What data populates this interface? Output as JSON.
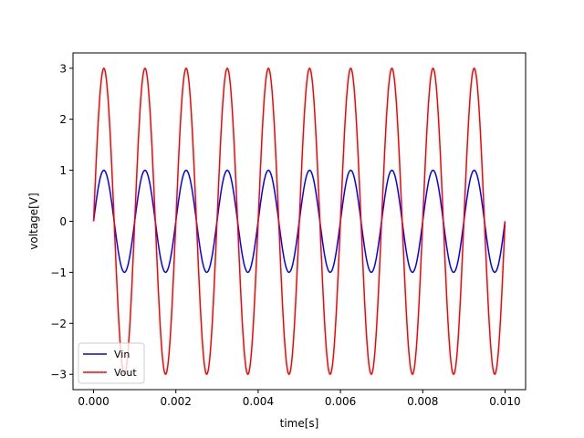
{
  "chart_data": {
    "type": "line",
    "title": "",
    "xlabel": "time[s]",
    "ylabel": "voltage[V]",
    "xlim": [
      -0.0005,
      0.0105
    ],
    "ylim": [
      -3.3,
      3.3
    ],
    "xticks": [
      0.0,
      0.002,
      0.004,
      0.006,
      0.008,
      0.01
    ],
    "xtick_labels": [
      "0.000",
      "0.002",
      "0.004",
      "0.006",
      "0.008",
      "0.010"
    ],
    "yticks": [
      -3,
      -2,
      -1,
      0,
      1,
      2,
      3
    ],
    "ytick_labels": [
      "−3",
      "−2",
      "−1",
      "0",
      "1",
      "2",
      "3"
    ],
    "grid": false,
    "legend_position": "lower-left",
    "series": [
      {
        "name": "Vin",
        "color": "#0000ff",
        "function": "sine",
        "amplitude": 1,
        "frequency_hz": 1000,
        "t_start": 0.0,
        "t_end": 0.01
      },
      {
        "name": "Vout",
        "color": "#ff0000",
        "function": "sine",
        "amplitude": 3,
        "frequency_hz": 1000,
        "t_start": 0.0,
        "t_end": 0.01
      }
    ]
  }
}
